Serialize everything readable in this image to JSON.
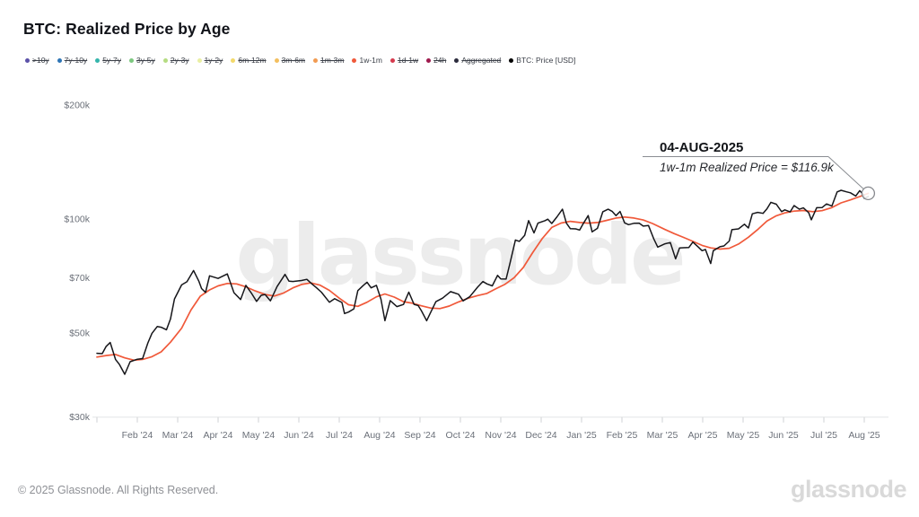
{
  "header": {
    "title": "BTC: Realized Price by Age"
  },
  "legend": {
    "items": [
      {
        "label": ">10y",
        "color": "#5b51a8",
        "active": false
      },
      {
        "label": "7y-10y",
        "color": "#2e75b6",
        "active": false
      },
      {
        "label": "5y-7y",
        "color": "#35b5ac",
        "active": false
      },
      {
        "label": "3y-5y",
        "color": "#7cc87f",
        "active": false
      },
      {
        "label": "2y-3y",
        "color": "#b5dc82",
        "active": false
      },
      {
        "label": "1y-2y",
        "color": "#e9efa3",
        "active": false
      },
      {
        "label": "6m-12m",
        "color": "#f3d96b",
        "active": false
      },
      {
        "label": "3m-6m",
        "color": "#f3bf5f",
        "active": false
      },
      {
        "label": "1m-3m",
        "color": "#f29b52",
        "active": false
      },
      {
        "label": "1w-1m",
        "color": "#f0593a",
        "active": true
      },
      {
        "label": "1d-1w",
        "color": "#d63a4d",
        "active": false
      },
      {
        "label": "24h",
        "color": "#9f1a4d",
        "active": false
      },
      {
        "label": "Aggregated",
        "color": "#2c2c3d",
        "active": false
      },
      {
        "label": "BTC: Price [USD]",
        "color": "#000000",
        "active": true
      }
    ]
  },
  "annotation": {
    "date": "04-AUG-2025",
    "text": "1w-1m Realized Price = $116.9k"
  },
  "watermark": "glassnode",
  "footer": {
    "copyright": "© 2025 Glassnode. All Rights Reserved.",
    "logo": "glassnode"
  },
  "chart_data": {
    "type": "line",
    "title": "BTC: Realized Price by Age",
    "x_axis": {
      "start_date": "2024-01-01",
      "end_date": "2025-08-04",
      "ticks": [
        "Feb '24",
        "Mar '24",
        "Apr '24",
        "May '24",
        "Jun '24",
        "Jul '24",
        "Aug '24",
        "Sep '24",
        "Oct '24",
        "Nov '24",
        "Dec '24",
        "Jan '25",
        "Feb '25",
        "Mar '25",
        "Apr '25",
        "May '25",
        "Jun '25",
        "Jul '25",
        "Aug '25"
      ]
    },
    "y_axis": {
      "scale": "log",
      "unit": "USD thousands",
      "tick_labels": [
        "$200k",
        "$100k",
        "$70k",
        "$50k",
        "$30k"
      ],
      "tick_values": [
        200,
        100,
        70,
        50,
        30
      ],
      "range_k": [
        30,
        215
      ]
    },
    "grid": false,
    "legend_position": "top",
    "last_point": {
      "date": "04-AUG-2025",
      "series": "1w-1m Realized Price",
      "value_k": 116.9
    },
    "series": [
      {
        "name": "1w-1m Realized Price",
        "color": "#f0593a",
        "unit": "$k",
        "points": [
          [
            "2024-01-01",
            43.2
          ],
          [
            "2024-01-08",
            43.6
          ],
          [
            "2024-01-15",
            43.9
          ],
          [
            "2024-01-22",
            43.0
          ],
          [
            "2024-01-29",
            42.4
          ],
          [
            "2024-02-05",
            42.6
          ],
          [
            "2024-02-12",
            43.3
          ],
          [
            "2024-02-19",
            44.6
          ],
          [
            "2024-02-26",
            47.3
          ],
          [
            "2024-03-04",
            51.5
          ],
          [
            "2024-03-11",
            57.5
          ],
          [
            "2024-03-18",
            62.5
          ],
          [
            "2024-03-25",
            65.0
          ],
          [
            "2024-04-01",
            66.6
          ],
          [
            "2024-04-08",
            67.6
          ],
          [
            "2024-04-15",
            67.4
          ],
          [
            "2024-04-22",
            66.2
          ],
          [
            "2024-04-29",
            64.6
          ],
          [
            "2024-05-06",
            63.2
          ],
          [
            "2024-05-13",
            62.6
          ],
          [
            "2024-05-20",
            63.8
          ],
          [
            "2024-05-27",
            65.8
          ],
          [
            "2024-06-03",
            67.2
          ],
          [
            "2024-06-10",
            67.8
          ],
          [
            "2024-06-17",
            66.9
          ],
          [
            "2024-06-24",
            64.8
          ],
          [
            "2024-07-01",
            61.8
          ],
          [
            "2024-07-08",
            59.4
          ],
          [
            "2024-07-15",
            58.8
          ],
          [
            "2024-07-22",
            60.3
          ],
          [
            "2024-07-29",
            62.3
          ],
          [
            "2024-08-05",
            63.4
          ],
          [
            "2024-08-12",
            62.2
          ],
          [
            "2024-08-19",
            60.5
          ],
          [
            "2024-08-26",
            59.9
          ],
          [
            "2024-09-02",
            59.0
          ],
          [
            "2024-09-09",
            58.2
          ],
          [
            "2024-09-16",
            58.0
          ],
          [
            "2024-09-23",
            58.9
          ],
          [
            "2024-09-30",
            60.4
          ],
          [
            "2024-10-07",
            61.8
          ],
          [
            "2024-10-14",
            62.8
          ],
          [
            "2024-10-21",
            63.6
          ],
          [
            "2024-10-28",
            65.5
          ],
          [
            "2024-11-04",
            67.2
          ],
          [
            "2024-11-11",
            70.0
          ],
          [
            "2024-11-18",
            74.5
          ],
          [
            "2024-11-25",
            81.5
          ],
          [
            "2024-12-02",
            89.0
          ],
          [
            "2024-12-09",
            95.0
          ],
          [
            "2024-12-16",
            97.6
          ],
          [
            "2024-12-23",
            98.6
          ],
          [
            "2024-12-30",
            97.9
          ],
          [
            "2025-01-06",
            97.5
          ],
          [
            "2025-01-13",
            97.9
          ],
          [
            "2025-01-20",
            99.2
          ],
          [
            "2025-01-27",
            100.6
          ],
          [
            "2025-02-03",
            101.2
          ],
          [
            "2025-02-10",
            100.6
          ],
          [
            "2025-02-17",
            99.4
          ],
          [
            "2025-02-24",
            97.3
          ],
          [
            "2025-03-03",
            93.8
          ],
          [
            "2025-03-10",
            91.5
          ],
          [
            "2025-03-17",
            89.4
          ],
          [
            "2025-03-24",
            87.3
          ],
          [
            "2025-03-31",
            85.2
          ],
          [
            "2025-04-07",
            83.9
          ],
          [
            "2025-04-14",
            83.3
          ],
          [
            "2025-04-21",
            83.7
          ],
          [
            "2025-04-28",
            85.9
          ],
          [
            "2025-05-05",
            89.5
          ],
          [
            "2025-05-12",
            93.8
          ],
          [
            "2025-05-19",
            98.8
          ],
          [
            "2025-05-26",
            102.0
          ],
          [
            "2025-06-02",
            103.8
          ],
          [
            "2025-06-09",
            104.9
          ],
          [
            "2025-06-16",
            105.3
          ],
          [
            "2025-06-23",
            104.6
          ],
          [
            "2025-06-30",
            105.2
          ],
          [
            "2025-07-07",
            107.2
          ],
          [
            "2025-07-14",
            110.3
          ],
          [
            "2025-07-21",
            112.3
          ],
          [
            "2025-07-28",
            114.6
          ],
          [
            "2025-08-04",
            116.9
          ]
        ]
      },
      {
        "name": "BTC: Price [USD]",
        "color": "#16161a",
        "unit": "$k",
        "points": [
          [
            "2024-01-01",
            44.2
          ],
          [
            "2024-01-05",
            44.1
          ],
          [
            "2024-01-08",
            46.1
          ],
          [
            "2024-01-11",
            47.2
          ],
          [
            "2024-01-15",
            42.6
          ],
          [
            "2024-01-18",
            41.3
          ],
          [
            "2024-01-22",
            38.9
          ],
          [
            "2024-01-26",
            42.0
          ],
          [
            "2024-01-31",
            42.6
          ],
          [
            "2024-02-05",
            42.8
          ],
          [
            "2024-02-09",
            47.1
          ],
          [
            "2024-02-12",
            49.9
          ],
          [
            "2024-02-16",
            52.0
          ],
          [
            "2024-02-19",
            51.8
          ],
          [
            "2024-02-23",
            51.0
          ],
          [
            "2024-02-26",
            54.5
          ],
          [
            "2024-02-29",
            61.5
          ],
          [
            "2024-03-04",
            67.0
          ],
          [
            "2024-03-08",
            68.3
          ],
          [
            "2024-03-13",
            73.1
          ],
          [
            "2024-03-17",
            68.4
          ],
          [
            "2024-03-19",
            65.5
          ],
          [
            "2024-03-22",
            64.0
          ],
          [
            "2024-03-25",
            70.8
          ],
          [
            "2024-04-01",
            69.7
          ],
          [
            "2024-04-08",
            71.6
          ],
          [
            "2024-04-13",
            63.9
          ],
          [
            "2024-04-18",
            61.3
          ],
          [
            "2024-04-22",
            66.8
          ],
          [
            "2024-04-26",
            63.8
          ],
          [
            "2024-04-30",
            60.6
          ],
          [
            "2024-05-03",
            62.9
          ],
          [
            "2024-05-06",
            63.2
          ],
          [
            "2024-05-10",
            60.8
          ],
          [
            "2024-05-15",
            66.3
          ],
          [
            "2024-05-21",
            71.4
          ],
          [
            "2024-05-24",
            68.5
          ],
          [
            "2024-05-27",
            68.4
          ],
          [
            "2024-06-03",
            68.8
          ],
          [
            "2024-06-07",
            69.3
          ],
          [
            "2024-06-11",
            67.3
          ],
          [
            "2024-06-14",
            66.0
          ],
          [
            "2024-06-18",
            64.1
          ],
          [
            "2024-06-24",
            60.3
          ],
          [
            "2024-06-28",
            61.6
          ],
          [
            "2024-07-03",
            60.2
          ],
          [
            "2024-07-05",
            56.3
          ],
          [
            "2024-07-08",
            56.8
          ],
          [
            "2024-07-12",
            57.9
          ],
          [
            "2024-07-15",
            64.7
          ],
          [
            "2024-07-19",
            66.7
          ],
          [
            "2024-07-22",
            68.1
          ],
          [
            "2024-07-25",
            65.8
          ],
          [
            "2024-07-29",
            66.8
          ],
          [
            "2024-08-02",
            61.4
          ],
          [
            "2024-08-05",
            53.9
          ],
          [
            "2024-08-09",
            60.9
          ],
          [
            "2024-08-14",
            58.7
          ],
          [
            "2024-08-19",
            59.5
          ],
          [
            "2024-08-23",
            64.1
          ],
          [
            "2024-08-27",
            59.5
          ],
          [
            "2024-08-30",
            59.1
          ],
          [
            "2024-09-02",
            57.3
          ],
          [
            "2024-09-06",
            53.9
          ],
          [
            "2024-09-10",
            57.6
          ],
          [
            "2024-09-13",
            60.5
          ],
          [
            "2024-09-18",
            61.8
          ],
          [
            "2024-09-24",
            64.3
          ],
          [
            "2024-09-30",
            63.3
          ],
          [
            "2024-10-03",
            60.8
          ],
          [
            "2024-10-08",
            62.3
          ],
          [
            "2024-10-14",
            66.1
          ],
          [
            "2024-10-18",
            68.4
          ],
          [
            "2024-10-21",
            67.4
          ],
          [
            "2024-10-25",
            66.6
          ],
          [
            "2024-10-29",
            71.0
          ],
          [
            "2024-11-01",
            69.5
          ],
          [
            "2024-11-05",
            69.4
          ],
          [
            "2024-11-08",
            76.5
          ],
          [
            "2024-11-12",
            88.0
          ],
          [
            "2024-11-15",
            87.3
          ],
          [
            "2024-11-19",
            90.5
          ],
          [
            "2024-11-22",
            99.0
          ],
          [
            "2024-11-26",
            91.9
          ],
          [
            "2024-11-29",
            97.5
          ],
          [
            "2024-12-04",
            99.0
          ],
          [
            "2024-12-06",
            99.9
          ],
          [
            "2024-12-09",
            97.3
          ],
          [
            "2024-12-13",
            101.4
          ],
          [
            "2024-12-17",
            106.1
          ],
          [
            "2024-12-20",
            97.5
          ],
          [
            "2024-12-23",
            94.3
          ],
          [
            "2024-12-27",
            94.2
          ],
          [
            "2024-12-30",
            93.5
          ],
          [
            "2025-01-02",
            96.9
          ],
          [
            "2025-01-06",
            102.1
          ],
          [
            "2025-01-09",
            92.5
          ],
          [
            "2025-01-13",
            94.5
          ],
          [
            "2025-01-17",
            104.5
          ],
          [
            "2025-01-21",
            106.1
          ],
          [
            "2025-01-24",
            104.8
          ],
          [
            "2025-01-27",
            102.1
          ],
          [
            "2025-01-30",
            104.7
          ],
          [
            "2025-02-03",
            97.7
          ],
          [
            "2025-02-06",
            96.6
          ],
          [
            "2025-02-10",
            97.4
          ],
          [
            "2025-02-14",
            97.5
          ],
          [
            "2025-02-17",
            95.8
          ],
          [
            "2025-02-21",
            96.1
          ],
          [
            "2025-02-25",
            88.6
          ],
          [
            "2025-02-28",
            84.3
          ],
          [
            "2025-03-03",
            86.0
          ],
          [
            "2025-03-07",
            86.7
          ],
          [
            "2025-03-11",
            78.5
          ],
          [
            "2025-03-14",
            83.9
          ],
          [
            "2025-03-17",
            84.0
          ],
          [
            "2025-03-21",
            84.1
          ],
          [
            "2025-03-24",
            86.9
          ],
          [
            "2025-03-28",
            84.4
          ],
          [
            "2025-03-31",
            82.5
          ],
          [
            "2025-04-03",
            83.1
          ],
          [
            "2025-04-07",
            76.3
          ],
          [
            "2025-04-09",
            82.5
          ],
          [
            "2025-04-14",
            84.5
          ],
          [
            "2025-04-17",
            84.9
          ],
          [
            "2025-04-21",
            87.5
          ],
          [
            "2025-04-23",
            93.7
          ],
          [
            "2025-04-28",
            94.2
          ],
          [
            "2025-05-02",
            96.9
          ],
          [
            "2025-05-05",
            94.7
          ],
          [
            "2025-05-08",
            103.2
          ],
          [
            "2025-05-12",
            104.1
          ],
          [
            "2025-05-16",
            103.5
          ],
          [
            "2025-05-19",
            106.4
          ],
          [
            "2025-05-22",
            110.7
          ],
          [
            "2025-05-26",
            109.4
          ],
          [
            "2025-05-30",
            104.6
          ],
          [
            "2025-06-02",
            105.7
          ],
          [
            "2025-06-06",
            104.4
          ],
          [
            "2025-06-09",
            108.5
          ],
          [
            "2025-06-13",
            106.1
          ],
          [
            "2025-06-16",
            107.0
          ],
          [
            "2025-06-20",
            103.9
          ],
          [
            "2025-06-22",
            99.5
          ],
          [
            "2025-06-26",
            107.1
          ],
          [
            "2025-06-30",
            107.2
          ],
          [
            "2025-07-03",
            109.6
          ],
          [
            "2025-07-07",
            108.2
          ],
          [
            "2025-07-11",
            117.9
          ],
          [
            "2025-07-14",
            119.1
          ],
          [
            "2025-07-18",
            118.0
          ],
          [
            "2025-07-21",
            117.3
          ],
          [
            "2025-07-25",
            115.0
          ],
          [
            "2025-07-28",
            118.8
          ],
          [
            "2025-07-31",
            115.8
          ],
          [
            "2025-08-01",
            113.4
          ],
          [
            "2025-08-04",
            114.6
          ]
        ]
      }
    ]
  }
}
